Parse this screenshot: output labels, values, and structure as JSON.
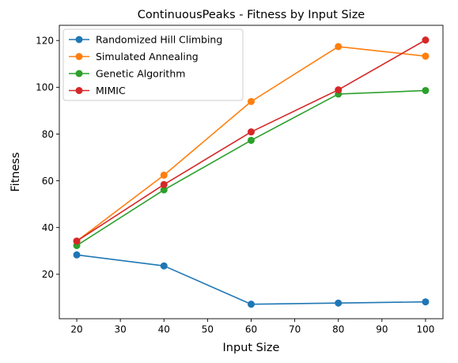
{
  "chart_data": {
    "type": "line",
    "title": "ContinuousPeaks - Fitness by Input Size",
    "xlabel": "Input Size",
    "ylabel": "Fitness",
    "xlim": [
      16,
      104
    ],
    "ylim": [
      1.0,
      126.5
    ],
    "xticks": [
      20,
      30,
      40,
      50,
      60,
      70,
      80,
      90,
      100
    ],
    "yticks": [
      20,
      40,
      60,
      80,
      100,
      120
    ],
    "grid": false,
    "legend_position": "upper-left",
    "x": [
      20,
      40,
      60,
      80,
      100
    ],
    "series": [
      {
        "name": "Randomized Hill Climbing",
        "color": "#1f77b4",
        "values": [
          28.3,
          23.6,
          7.2,
          7.7,
          8.2
        ]
      },
      {
        "name": "Simulated Annealing",
        "color": "#ff7f0e",
        "values": [
          34.2,
          62.4,
          93.9,
          117.4,
          113.3
        ]
      },
      {
        "name": "Genetic Algorithm",
        "color": "#2ca02c",
        "values": [
          32.3,
          56.1,
          77.3,
          97.1,
          98.6
        ]
      },
      {
        "name": "MIMIC",
        "color": "#d62728",
        "values": [
          34.2,
          58.4,
          80.9,
          98.9,
          120.2
        ]
      }
    ]
  }
}
